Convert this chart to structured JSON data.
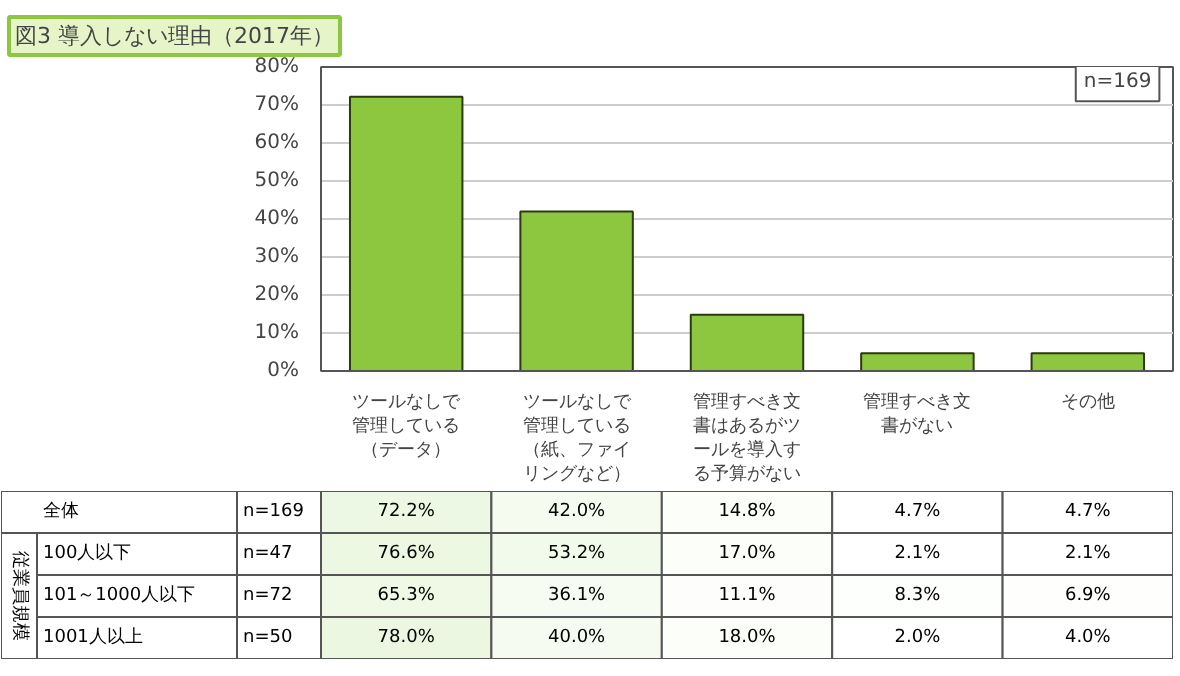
{
  "chart_data": [
    {
      "type": "bar",
      "title": "図3 導入しない理由（2017年）",
      "categories": [
        "ツールなしで管理している（データ）",
        "ツールなしで管理している（紙、ファイリングなど）",
        "管理すべき文書はあるがツールを導入する予算がない",
        "管理すべき文書がない",
        "その他"
      ],
      "values": [
        72.2,
        42.0,
        14.8,
        4.7,
        4.7
      ],
      "color": "#8dc63f",
      "ylim": [
        0,
        80
      ],
      "yticks": [
        {
          "value": 0,
          "label": "0%"
        },
        {
          "value": 10,
          "label": "10%"
        },
        {
          "value": 20,
          "label": "20%"
        },
        {
          "value": 30,
          "label": "30%"
        },
        {
          "value": 40,
          "label": "40%"
        },
        {
          "value": 50,
          "label": "50%"
        },
        {
          "value": 60,
          "label": "60%"
        },
        {
          "value": 70,
          "label": "70%"
        },
        {
          "value": 80,
          "label": "80%"
        }
      ],
      "grid": "y",
      "annotations": [
        "n=169"
      ]
    },
    {
      "type": "heatmap",
      "categories": [
        null,
        null,
        null,
        null,
        null
      ],
      "y_categories": [
        "全体",
        "100人以下",
        "101～1000人以下",
        "1001人以上"
      ],
      "y2_categories": [
        "n=169",
        "n=47",
        "n=72",
        "n=50"
      ],
      "cells": [
        [
          72.2,
          42.0,
          14.8,
          4.7,
          4.7
        ],
        [
          76.6,
          53.2,
          17.0,
          2.1,
          2.1
        ],
        [
          65.3,
          36.1,
          11.1,
          8.3,
          6.9
        ],
        [
          78.0,
          40.0,
          18.0,
          2.0,
          4.0
        ]
      ],
      "cell_labels": [
        [
          "72.2%",
          "42.0%",
          "14.8%",
          "4.7%",
          "4.7%"
        ],
        [
          "76.6%",
          "53.2%",
          "17.0%",
          "2.1%",
          "2.1%"
        ],
        [
          "65.3%",
          "36.1%",
          "11.1%",
          "8.3%",
          "6.9%"
        ],
        [
          "78.0%",
          "40.0%",
          "18.0%",
          "2.0%",
          "4.0%"
        ]
      ],
      "annotations": [
        "従業員規模"
      ]
    }
  ]
}
